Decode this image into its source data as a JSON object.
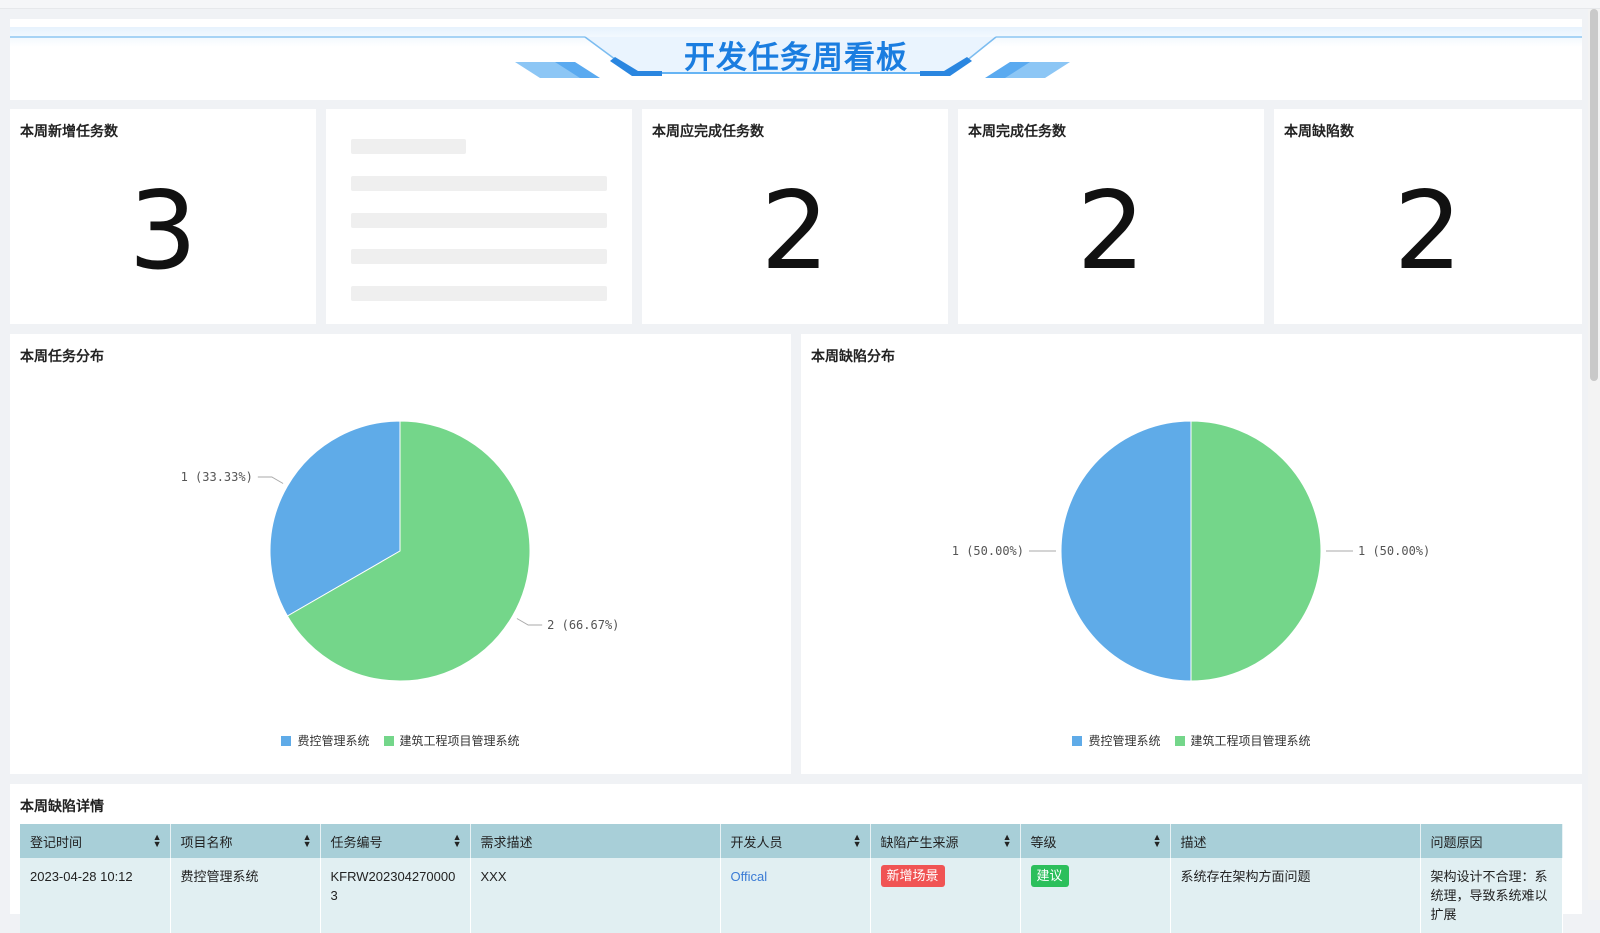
{
  "header": {
    "title": "开发任务周看板"
  },
  "cards": [
    {
      "title": "本周新增任务数",
      "value": "3"
    },
    {
      "title": "本周应完成任务数",
      "value": "2"
    },
    {
      "title": "本周完成任务数",
      "value": "2"
    },
    {
      "title": "本周缺陷数",
      "value": "2"
    }
  ],
  "colors": {
    "blue": "#5fabe8",
    "green": "#74d68a",
    "title": "#1a7de0",
    "tag_red": "#f05454",
    "tag_green": "#2cbf5c",
    "link": "#3a7bd5"
  },
  "chart_data": [
    {
      "type": "pie",
      "title": "本周任务分布",
      "legend": [
        "费控管理系统",
        "建筑工程项目管理系统"
      ],
      "legend_position": "bottom",
      "values": [
        1,
        2
      ],
      "labels": [
        "1 (33.33%)",
        "2 (66.67%)"
      ]
    },
    {
      "type": "pie",
      "title": "本周缺陷分布",
      "legend": [
        "费控管理系统",
        "建筑工程项目管理系统"
      ],
      "legend_position": "bottom",
      "values": [
        1,
        1
      ],
      "labels": [
        "1 (50.00%)",
        "1 (50.00%)"
      ]
    }
  ],
  "table": {
    "title": "本周缺陷详情",
    "columns": [
      "登记时间",
      "项目名称",
      "任务编号",
      "需求描述",
      "开发人员",
      "缺陷产生来源",
      "等级",
      "描述",
      "问题原因"
    ],
    "sortable": [
      true,
      true,
      true,
      false,
      true,
      true,
      true,
      false,
      false
    ],
    "rows": [
      {
        "time": "2023-04-28 10:12",
        "project": "费控管理系统",
        "task_no": "KFRW2023042700003",
        "req": "XXX",
        "dev": "Offical",
        "source": "新增场景",
        "level": "建议",
        "desc": "系统存在架构方面问题",
        "reason": "架构设计不合理：系统理，导致系统难以扩展"
      }
    ]
  }
}
